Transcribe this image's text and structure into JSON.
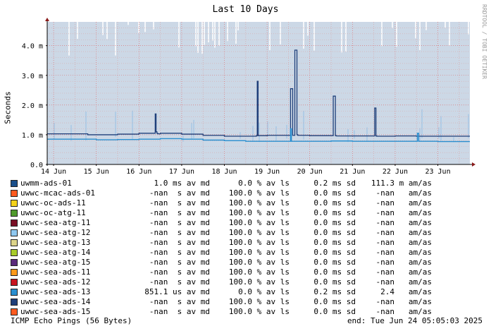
{
  "chart_data": {
    "type": "line",
    "title": "Last 10 Days",
    "ylabel": "Seconds",
    "watermark": "RRDTOOL / TOBI OETIKER",
    "ylim": [
      0,
      4.8
    ],
    "yticks": [
      {
        "value": 0,
        "label": "0.0"
      },
      {
        "value": 1,
        "label": "1.0 m"
      },
      {
        "value": 2,
        "label": "2.0 m"
      },
      {
        "value": 3,
        "label": "3.0 m"
      },
      {
        "value": 4,
        "label": "4.0 m"
      }
    ],
    "xlim": [
      13.85,
      23.75
    ],
    "xticks": [
      {
        "value": 14,
        "label": "14 Jun"
      },
      {
        "value": 15,
        "label": "15 Jun"
      },
      {
        "value": 16,
        "label": "16 Jun"
      },
      {
        "value": 17,
        "label": "17 Jun"
      },
      {
        "value": 18,
        "label": "18 Jun"
      },
      {
        "value": 19,
        "label": "19 Jun"
      },
      {
        "value": 20,
        "label": "20 Jun"
      },
      {
        "value": 21,
        "label": "21 Jun"
      },
      {
        "value": 22,
        "label": "22 Jun"
      },
      {
        "value": 23,
        "label": "23 Jun"
      }
    ],
    "grid": true,
    "series": [
      {
        "name": "uwmm-ads-01",
        "color": "#1f3f7a",
        "x": [
          13.85,
          14.4,
          14.8,
          15.5,
          16.0,
          16.35,
          16.38,
          16.4,
          16.42,
          16.44,
          16.5,
          17.0,
          17.5,
          18.0,
          18.5,
          18.75,
          18.77,
          18.79,
          18.81,
          19.0,
          19.5,
          19.55,
          19.6,
          19.65,
          19.7,
          19.72,
          19.74,
          20.0,
          20.5,
          20.55,
          20.6,
          20.62,
          20.65,
          21.0,
          21.5,
          21.52,
          21.55,
          21.57,
          22.0,
          22.5,
          23.0,
          23.5,
          23.75
        ],
        "y": [
          1.03,
          1.03,
          1.0,
          1.02,
          1.05,
          1.05,
          1.7,
          1.1,
          1.05,
          1.03,
          1.05,
          1.02,
          0.98,
          0.95,
          0.95,
          0.97,
          2.8,
          0.97,
          0.97,
          0.98,
          0.98,
          2.55,
          0.98,
          3.85,
          1.0,
          0.98,
          0.98,
          0.97,
          0.97,
          2.3,
          0.97,
          0.96,
          0.96,
          0.96,
          0.96,
          1.9,
          0.96,
          0.95,
          0.96,
          0.95,
          0.95,
          0.95,
          0.95
        ]
      },
      {
        "name": "uwwc-sea-ads-13",
        "color": "#2a8fd0",
        "x": [
          13.85,
          14.5,
          15.0,
          15.5,
          16.0,
          16.5,
          17.0,
          17.5,
          18.0,
          18.5,
          19.0,
          19.5,
          19.55,
          19.57,
          19.6,
          20.0,
          20.5,
          21.0,
          21.5,
          22.0,
          22.5,
          22.52,
          22.55,
          23.0,
          23.5,
          23.75
        ],
        "y": [
          0.85,
          0.85,
          0.83,
          0.84,
          0.85,
          0.87,
          0.85,
          0.82,
          0.8,
          0.78,
          0.78,
          0.78,
          1.2,
          0.78,
          0.78,
          0.78,
          0.79,
          0.78,
          0.78,
          0.78,
          0.78,
          1.05,
          0.78,
          0.77,
          0.77,
          0.77
        ]
      }
    ]
  },
  "legend": [
    {
      "name": "uwmm-ads-01",
      "color": "#1a4f8a",
      "avg": "1.0 ms av md",
      "loss": "0.0 % av ls",
      "sd": "0.2 ms sd",
      "amas": "111.3 m am/as"
    },
    {
      "name": "uwwc-mcac-ads-01",
      "color": "#ff5a1f",
      "avg": "-nan  s av md",
      "loss": "100.0 % av ls",
      "sd": "0.0 ms sd",
      "amas": "-nan   am/as"
    },
    {
      "name": "uwwc-oc-ads-11",
      "color": "#f4d21a",
      "avg": "-nan  s av md",
      "loss": "100.0 % av ls",
      "sd": "0.0 ms sd",
      "amas": "-nan   am/as"
    },
    {
      "name": "uwwc-oc-atg-11",
      "color": "#4f9a2c",
      "avg": "-nan  s av md",
      "loss": "100.0 % av ls",
      "sd": "0.0 ms sd",
      "amas": "-nan   am/as"
    },
    {
      "name": "uwwc-sea-atg-11",
      "color": "#7a0f24",
      "avg": "-nan  s av md",
      "loss": "100.0 % av ls",
      "sd": "0.0 ms sd",
      "amas": "-nan   am/as"
    },
    {
      "name": "uwwc-sea-atg-12",
      "color": "#8fc8f0",
      "avg": "-nan  s av md",
      "loss": "100.0 % av ls",
      "sd": "0.0 ms sd",
      "amas": "-nan   am/as"
    },
    {
      "name": "uwwc-sea-atg-13",
      "color": "#dcd48a",
      "avg": "-nan  s av md",
      "loss": "100.0 % av ls",
      "sd": "0.0 ms sd",
      "amas": "-nan   am/as"
    },
    {
      "name": "uwwc-sea-atg-14",
      "color": "#a8cc2a",
      "avg": "-nan  s av md",
      "loss": "100.0 % av ls",
      "sd": "0.0 ms sd",
      "amas": "-nan   am/as"
    },
    {
      "name": "uwwc-sea-atg-15",
      "color": "#5a2a7a",
      "avg": "-nan  s av md",
      "loss": "100.0 % av ls",
      "sd": "0.0 ms sd",
      "amas": "-nan   am/as"
    },
    {
      "name": "uwwc-sea-ads-11",
      "color": "#ff9a1a",
      "avg": "-nan  s av md",
      "loss": "100.0 % av ls",
      "sd": "0.0 ms sd",
      "amas": "-nan   am/as"
    },
    {
      "name": "uwwc-sea-ads-12",
      "color": "#c8141e",
      "avg": "-nan  s av md",
      "loss": "100.0 % av ls",
      "sd": "0.0 ms sd",
      "amas": "-nan   am/as"
    },
    {
      "name": "uwwc-sea-ads-13",
      "color": "#2a8fd0",
      "avg": "851.1 us av md",
      "loss": "0.0 % av ls",
      "sd": "0.2 ms sd",
      "amas": "2.4   am/as"
    },
    {
      "name": "uwwc-sea-ads-14",
      "color": "#1f3f7a",
      "avg": "-nan  s av md",
      "loss": "100.0 % av ls",
      "sd": "0.0 ms sd",
      "amas": "-nan   am/as"
    },
    {
      "name": "uwwc-sea-ads-15",
      "color": "#ff5a1f",
      "avg": "-nan  s av md",
      "loss": "100.0 % av ls",
      "sd": "0.0 ms sd",
      "amas": "-nan   am/as"
    }
  ],
  "footer": {
    "left": "ICMP Echo Pings (56 Bytes)",
    "right": "end: Tue Jun 24 05:05:03 2025"
  }
}
